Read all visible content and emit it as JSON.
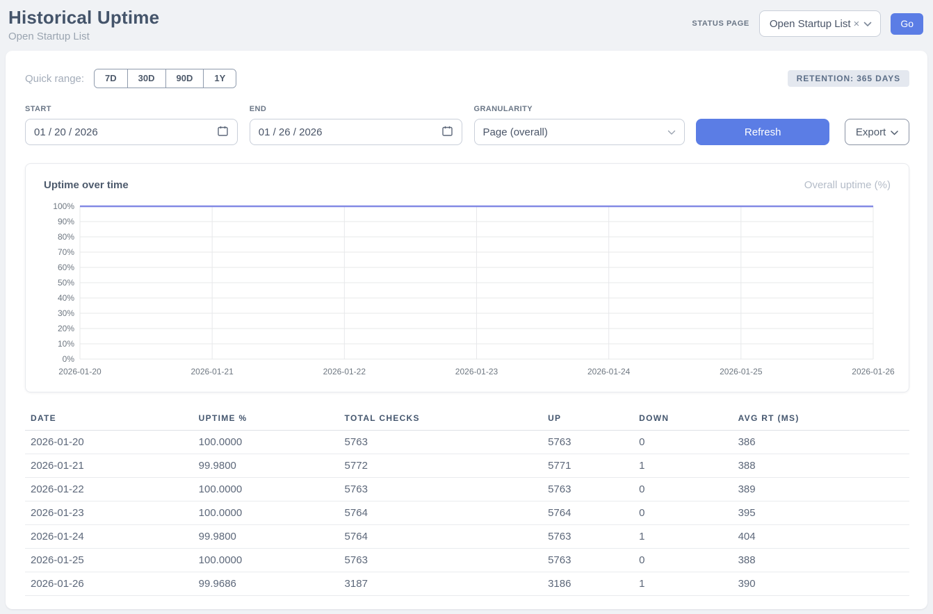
{
  "header": {
    "title": "Historical Uptime",
    "subtitle": "Open Startup List"
  },
  "topbar": {
    "status_page_label": "STATUS PAGE",
    "status_page_value": "Open Startup List",
    "clear_icon": "×",
    "go_label": "Go"
  },
  "controls": {
    "quick_range_label": "Quick range:",
    "quick_ranges": [
      "7D",
      "30D",
      "90D",
      "1Y"
    ],
    "retention_badge": "RETENTION: 365 DAYS",
    "start_label": "START",
    "start_value": "01 / 20 / 2026",
    "end_label": "END",
    "end_value": "01 / 26 / 2026",
    "granularity_label": "GRANULARITY",
    "granularity_value": "Page (overall)",
    "refresh_label": "Refresh",
    "export_label": "Export"
  },
  "chart": {
    "title": "Uptime over time",
    "legend": "Overall uptime (%)"
  },
  "chart_data": {
    "type": "line",
    "title": "Uptime over time",
    "x": [
      "2026-01-20",
      "2026-01-21",
      "2026-01-22",
      "2026-01-23",
      "2026-01-24",
      "2026-01-25",
      "2026-01-26"
    ],
    "series": [
      {
        "name": "Overall uptime (%)",
        "values": [
          100.0,
          99.98,
          100.0,
          100.0,
          99.98,
          100.0,
          99.9686
        ]
      }
    ],
    "ylim": [
      0,
      100
    ],
    "ytick_step": 10,
    "ytick_suffix": "%",
    "grid": true,
    "legend_position": "top-right",
    "line_color": "#8289e4"
  },
  "table": {
    "columns": [
      "DATE",
      "UPTIME %",
      "TOTAL CHECKS",
      "UP",
      "DOWN",
      "AVG RT (MS)"
    ],
    "rows": [
      [
        "2026-01-20",
        "100.0000",
        "5763",
        "5763",
        "0",
        "386"
      ],
      [
        "2026-01-21",
        "99.9800",
        "5772",
        "5771",
        "1",
        "388"
      ],
      [
        "2026-01-22",
        "100.0000",
        "5763",
        "5763",
        "0",
        "389"
      ],
      [
        "2026-01-23",
        "100.0000",
        "5764",
        "5764",
        "0",
        "395"
      ],
      [
        "2026-01-24",
        "99.9800",
        "5764",
        "5763",
        "1",
        "404"
      ],
      [
        "2026-01-25",
        "100.0000",
        "5763",
        "5763",
        "0",
        "388"
      ],
      [
        "2026-01-26",
        "99.9686",
        "3187",
        "3186",
        "1",
        "390"
      ]
    ]
  },
  "colors": {
    "accent_blue": "#5b7de5",
    "line_purple": "#8289e4",
    "grid_gray": "#e7e8ea",
    "tick_text": "#6e7781"
  }
}
